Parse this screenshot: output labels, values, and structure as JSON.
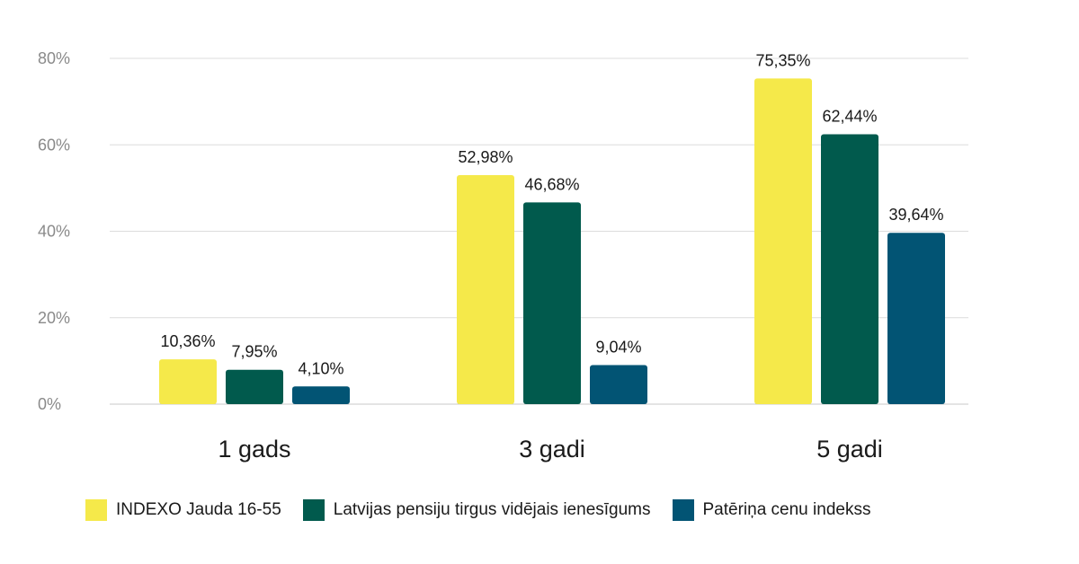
{
  "chart_data": {
    "type": "bar",
    "categories": [
      "1 gads",
      "3 gadi",
      "5 gadi"
    ],
    "series": [
      {
        "name": "INDEXO Jauda 16-55",
        "color": "#f5e94a",
        "values": [
          10.36,
          52.98,
          75.35
        ],
        "labels": [
          "10,36%",
          "52,98%",
          "75,35%"
        ]
      },
      {
        "name": "Latvijas pensiju tirgus vidējais ienesīgums",
        "color": "#015a4d",
        "values": [
          7.95,
          46.68,
          62.44
        ],
        "labels": [
          "7,95%",
          "46,68%",
          "62,44%"
        ]
      },
      {
        "name": "Patēriņa cenu indekss",
        "color": "#025474",
        "values": [
          4.1,
          9.04,
          39.64
        ],
        "labels": [
          "4,10%",
          "9,04%",
          "39,64%"
        ]
      }
    ],
    "yticks": [
      0,
      20,
      40,
      60,
      80
    ],
    "ytick_labels": [
      "0%",
      "20%",
      "40%",
      "60%",
      "80%"
    ],
    "ylim": [
      0,
      80
    ],
    "grid": true,
    "legend_position": "bottom"
  }
}
